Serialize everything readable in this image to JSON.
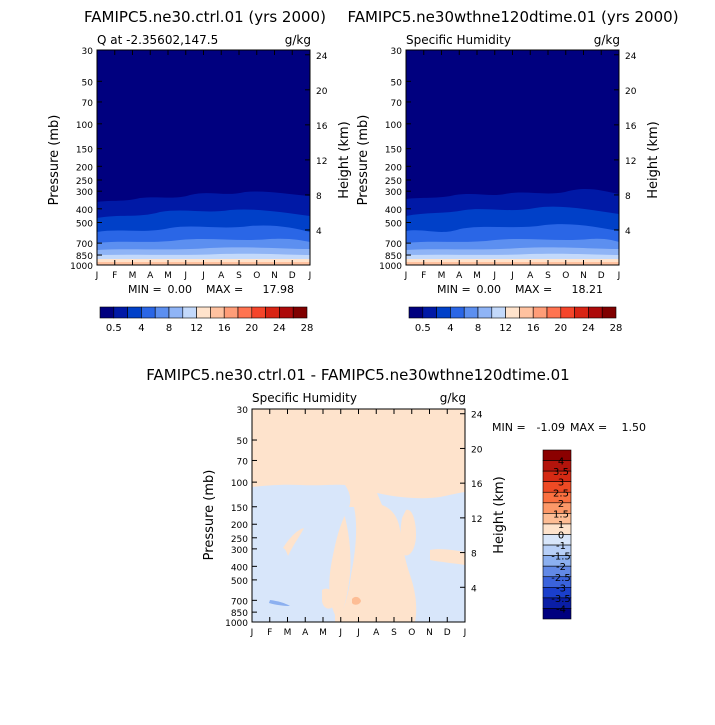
{
  "chart_data": [
    {
      "type": "heatmap",
      "title": "FAMIPC5.ne30.ctrl.01 (yrs 2000)",
      "subtitle_left": "Q at -2.35602,147.5",
      "subtitle_right": "g/kg",
      "ylabel_left": "Pressure (mb)",
      "ylabel_right": "Height (km)",
      "x_ticks": [
        "J",
        "F",
        "M",
        "A",
        "M",
        "J",
        "J",
        "A",
        "S",
        "O",
        "N",
        "D",
        "J"
      ],
      "pressure_ticks": [
        "30",
        "50",
        "70",
        "100",
        "150",
        "200",
        "250",
        "300",
        "400",
        "500",
        "700",
        "850",
        "1000"
      ],
      "height_ticks": [
        "24",
        "20",
        "16",
        "12",
        "8",
        "4"
      ],
      "min_label": "MIN =",
      "min_value": "0.00",
      "max_label": "MAX =",
      "max_value": "17.98",
      "colorbar_labels": [
        "0.5",
        "4",
        "8",
        "12",
        "16",
        "20",
        "24",
        "28"
      ],
      "colorbar_colors": [
        "#00007f",
        "#0019a6",
        "#0040c8",
        "#2a66e6",
        "#5c8ff0",
        "#8fb4f6",
        "#c3d9fb",
        "#ffe3cc",
        "#ffc2a0",
        "#ff9d78",
        "#ff7350",
        "#f5452a",
        "#d82414",
        "#ad0a0a",
        "#800000"
      ]
    },
    {
      "type": "heatmap",
      "title": "FAMIPC5.ne30wthne120dtime.01 (yrs 2000)",
      "subtitle_left": "Specific Humidity",
      "subtitle_right": "g/kg",
      "ylabel_left": "Pressure (mb)",
      "ylabel_right": "Height (km)",
      "x_ticks": [
        "J",
        "F",
        "M",
        "A",
        "M",
        "J",
        "J",
        "A",
        "S",
        "O",
        "N",
        "D",
        "J"
      ],
      "pressure_ticks": [
        "30",
        "50",
        "70",
        "100",
        "150",
        "200",
        "250",
        "300",
        "400",
        "500",
        "700",
        "850",
        "1000"
      ],
      "height_ticks": [
        "24",
        "20",
        "16",
        "12",
        "8",
        "4"
      ],
      "min_label": "MIN =",
      "min_value": "0.00",
      "max_label": "MAX =",
      "max_value": "18.21",
      "colorbar_labels": [
        "0.5",
        "4",
        "8",
        "12",
        "16",
        "20",
        "24",
        "28"
      ],
      "colorbar_colors": [
        "#00007f",
        "#0019a6",
        "#0040c8",
        "#2a66e6",
        "#5c8ff0",
        "#8fb4f6",
        "#c3d9fb",
        "#ffe3cc",
        "#ffc2a0",
        "#ff9d78",
        "#ff7350",
        "#f5452a",
        "#d82414",
        "#ad0a0a",
        "#800000"
      ]
    },
    {
      "type": "heatmap",
      "title": "FAMIPC5.ne30.ctrl.01 - FAMIPC5.ne30wthne120dtime.01",
      "subtitle_left": "Specific Humidity",
      "subtitle_right": "g/kg",
      "ylabel_left": "Pressure (mb)",
      "ylabel_right": "Height (km)",
      "x_ticks": [
        "J",
        "F",
        "M",
        "A",
        "M",
        "J",
        "J",
        "A",
        "S",
        "O",
        "N",
        "D",
        "J"
      ],
      "pressure_ticks": [
        "30",
        "50",
        "70",
        "100",
        "150",
        "200",
        "250",
        "300",
        "400",
        "500",
        "700",
        "850",
        "1000"
      ],
      "height_ticks": [
        "24",
        "20",
        "16",
        "12",
        "8",
        "4"
      ],
      "min_label": "MIN =",
      "min_value": "-1.09",
      "max_label": "MAX =",
      "max_value": "1.50",
      "colorbar_labels": [
        "4",
        "3.5",
        "3",
        "2.5",
        "2",
        "1.5",
        "1",
        "0",
        "-1",
        "-1.5",
        "-2",
        "-2.5",
        "-3",
        "-3.5",
        "-4"
      ],
      "colorbar_colors": [
        "#8b0000",
        "#b3140c",
        "#d42a14",
        "#ee4a24",
        "#fa7040",
        "#fc9868",
        "#fdbd95",
        "#fee3cc",
        "#d8e6fa",
        "#b7cff7",
        "#8cb0f0",
        "#6289e6",
        "#3a63dc",
        "#1a3fcc",
        "#0a1ea6",
        "#00007f"
      ],
      "dominant_colors": {
        "positive": "#fee3cc",
        "negative": "#d8e6fa"
      }
    }
  ]
}
